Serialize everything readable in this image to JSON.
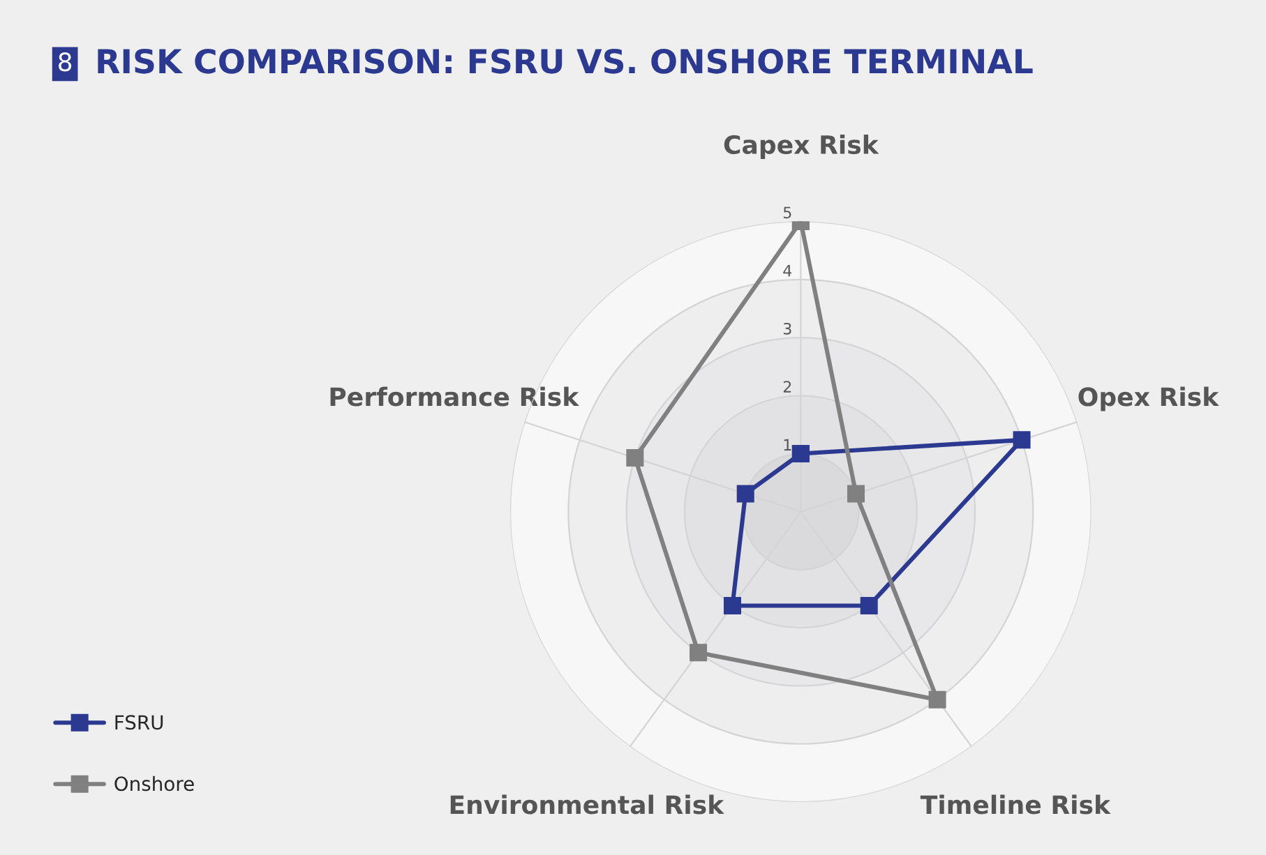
{
  "chart_data": {
    "type": "radar",
    "title": "RISK COMPARISON: FSRU VS. ONSHORE TERMINAL",
    "annotations": [
      "8"
    ],
    "categories": [
      "Capex Risk",
      "Opex Risk",
      "Timeline Risk",
      "Environmental Risk",
      "Performance Risk"
    ],
    "series": [
      {
        "name": "FSRU",
        "color": "#2b3990",
        "values": [
          1,
          4,
          2,
          2,
          1
        ]
      },
      {
        "name": "Onshore",
        "color": "#808080",
        "values": [
          5,
          1,
          4,
          3,
          3
        ]
      }
    ],
    "ylim": [
      0,
      5
    ],
    "yticks": [
      1,
      2,
      3,
      4,
      5
    ],
    "grid": true,
    "legend": "bottom left",
    "marker": "square",
    "line_style": "solid"
  }
}
